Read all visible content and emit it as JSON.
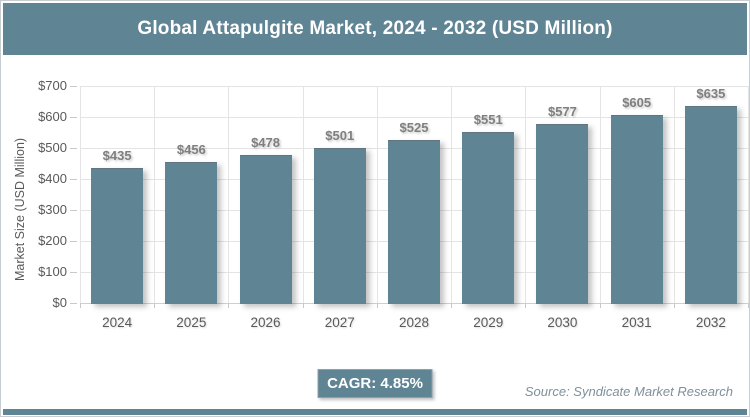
{
  "header": {
    "title": "Global Attapulgite Market, 2024 - 2032 (USD Million)"
  },
  "chart_data": {
    "type": "bar",
    "title": "Global Attapulgite Market, 2024 - 2032 (USD Million)",
    "categories": [
      "2024",
      "2025",
      "2026",
      "2027",
      "2028",
      "2029",
      "2030",
      "2031",
      "2032"
    ],
    "values": [
      435,
      456,
      478,
      501,
      525,
      551,
      577,
      605,
      635
    ],
    "value_labels": [
      "$435",
      "$456",
      "$478",
      "$501",
      "$525",
      "$551",
      "$577",
      "$605",
      "$635"
    ],
    "xlabel": "",
    "ylabel": "Market Size (USD Million)",
    "ylim": [
      0,
      700
    ],
    "ytick_interval": 100,
    "ytick_labels": [
      "$0",
      "$100",
      "$200",
      "$300",
      "$400",
      "$500",
      "$600",
      "$700"
    ],
    "grid": true,
    "legend": false,
    "bar_color": "#5F8494"
  },
  "footer": {
    "cagr_label": "CAGR: 4.85%",
    "source": "Source: Syndicate Market Research"
  },
  "colors": {
    "accent": "#5F8494",
    "grid": "#E4E4E4",
    "axis_text": "#595959",
    "value_label_text": "#7F7F7F",
    "source_text": "#7E909B",
    "title_text": "#FFFFFF"
  }
}
